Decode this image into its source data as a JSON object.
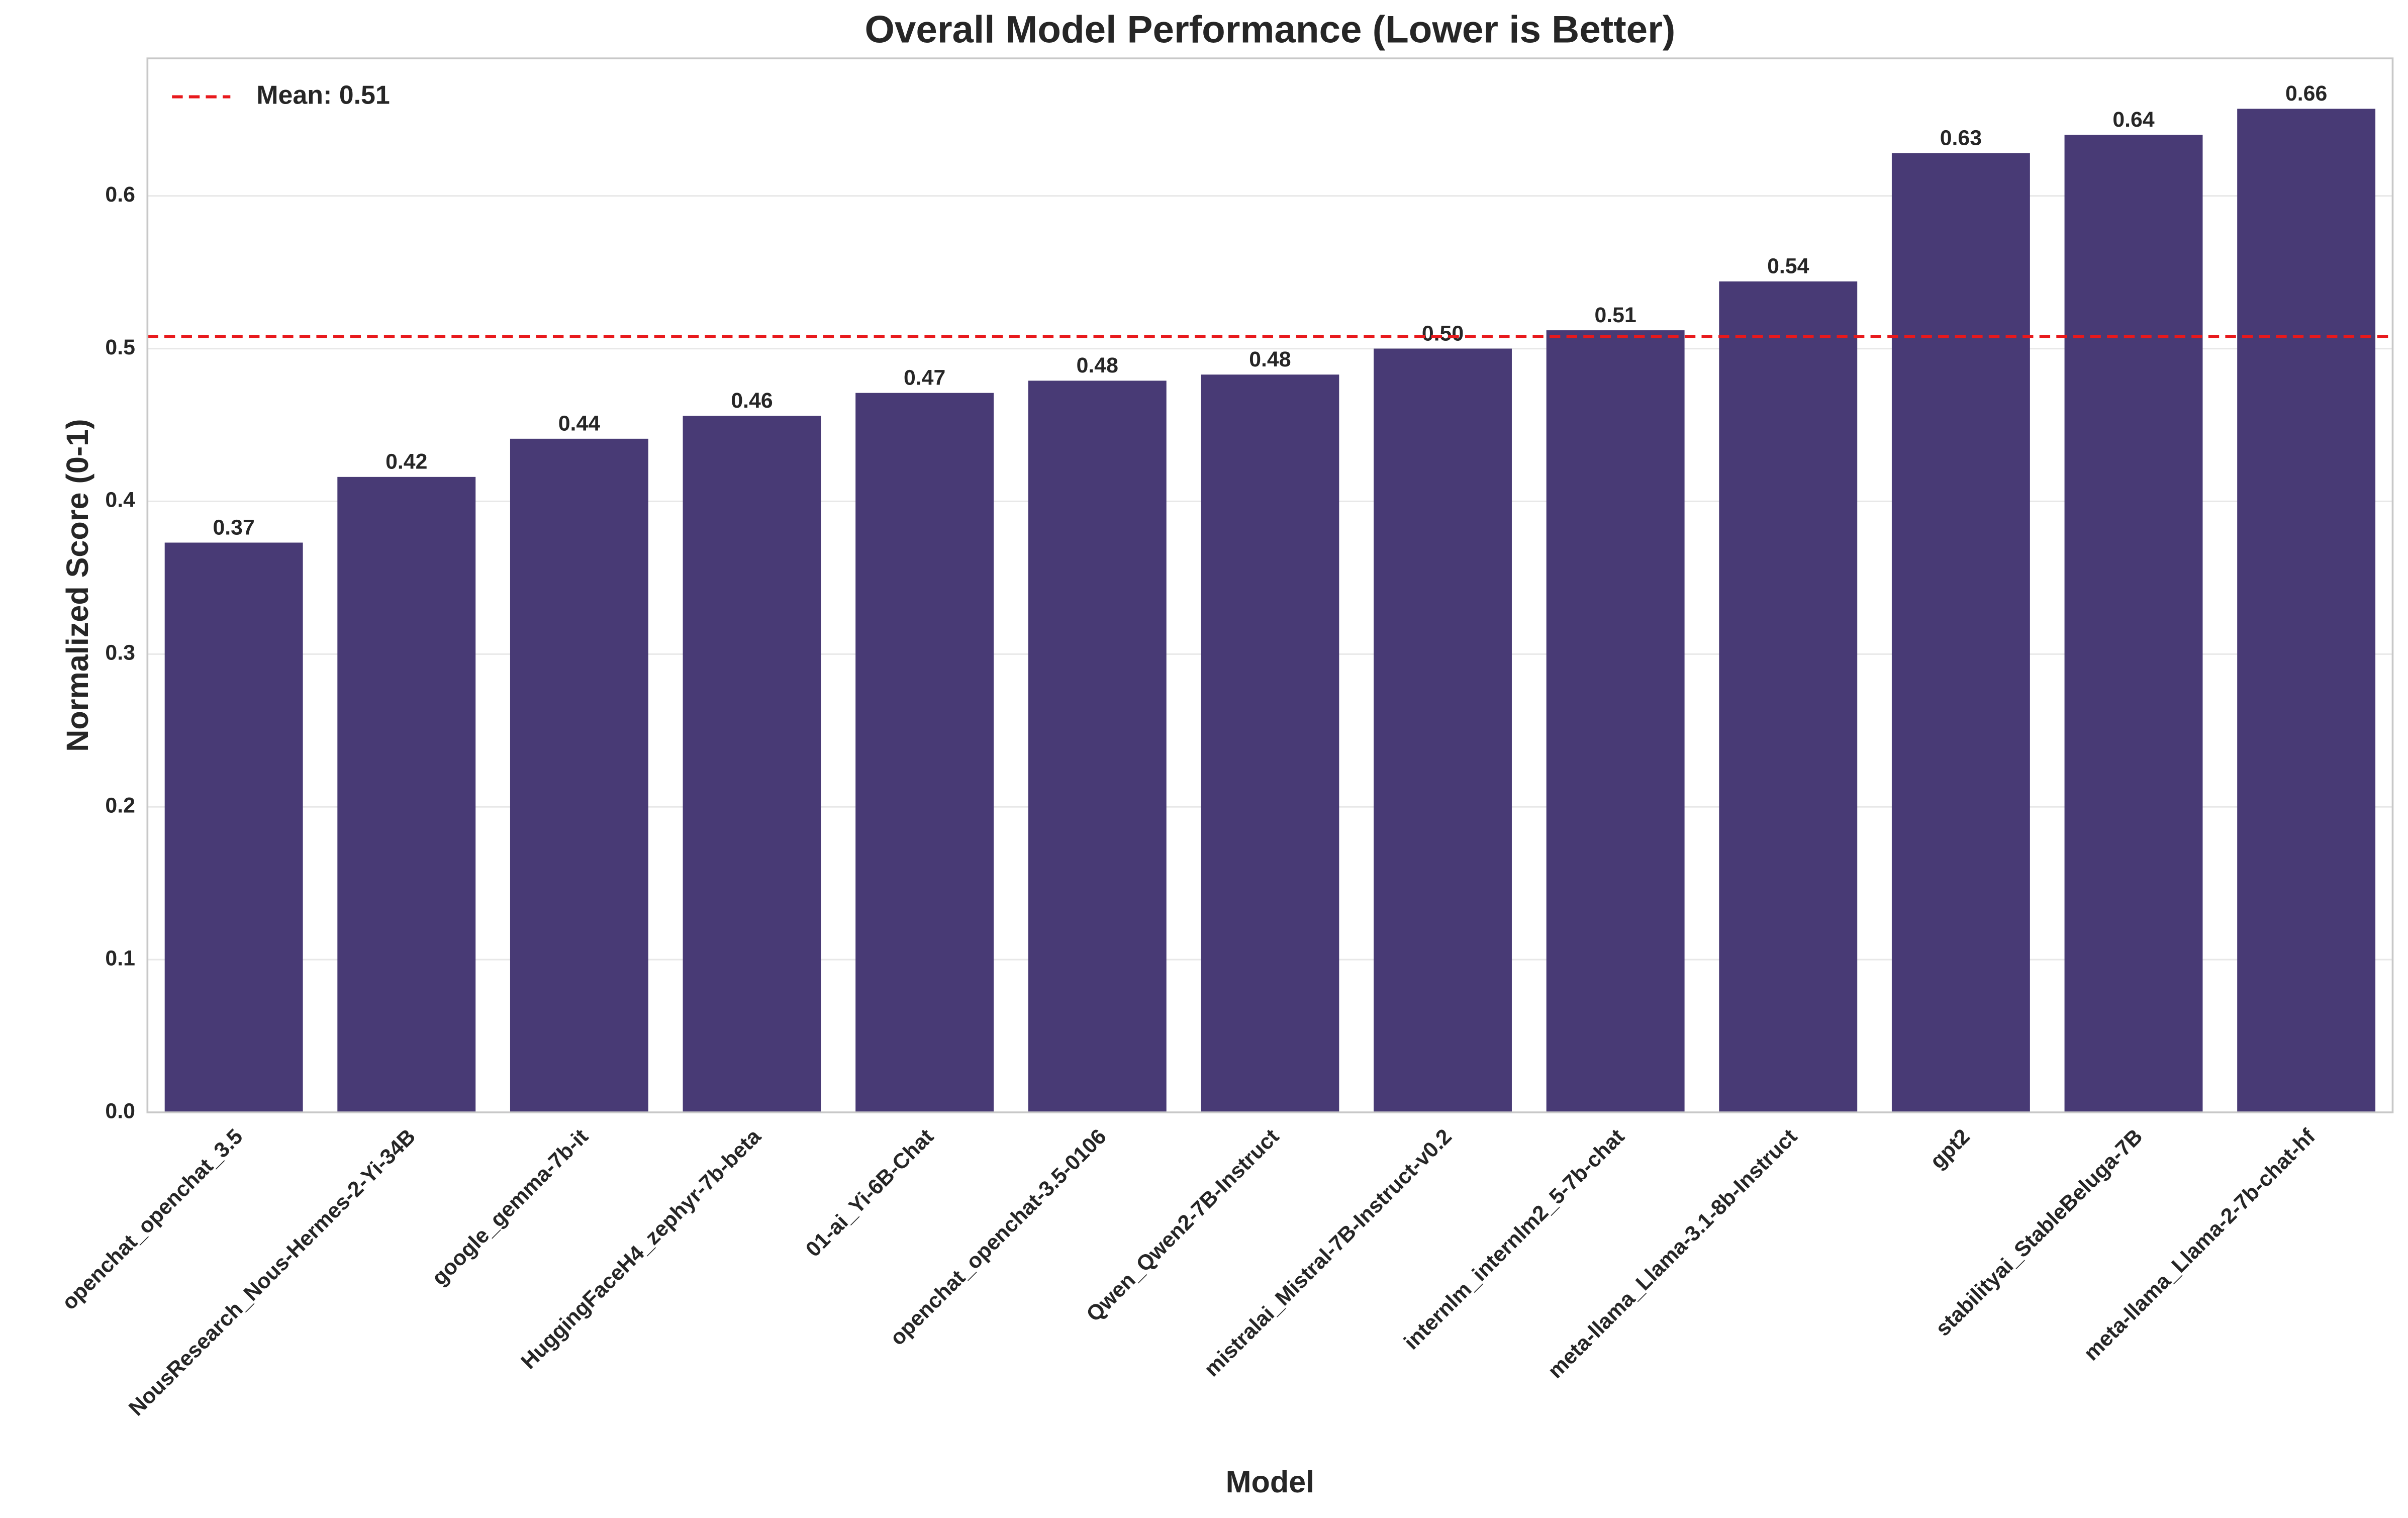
{
  "chart_data": {
    "type": "bar",
    "title": "Overall Model Performance (Lower is Better)",
    "x_label": "Model",
    "y_label": "Normalized Score (0-1)",
    "categories": [
      "openchat_openchat_3.5",
      "NousResearch_Nous-Hermes-2-Yi-34B",
      "google_gemma-7b-it",
      "HuggingFaceH4_zephyr-7b-beta",
      "01-ai_Yi-6B-Chat",
      "openchat_openchat-3.5-0106",
      "Qwen_Qwen2-7B-Instruct",
      "mistralai_Mistral-7B-Instruct-v0.2",
      "internlm_internlm2_5-7b-chat",
      "meta-llama_Llama-3.1-8b-Instruct",
      "gpt2",
      "stabilityai_StableBeluga-7B",
      "meta-llama_Llama-2-7b-chat-hf"
    ],
    "values": [
      0.373,
      0.416,
      0.441,
      0.456,
      0.471,
      0.479,
      0.483,
      0.5,
      0.512,
      0.544,
      0.628,
      0.64,
      0.657
    ],
    "value_labels": [
      "0.37",
      "0.42",
      "0.44",
      "0.46",
      "0.47",
      "0.48",
      "0.48",
      "0.50",
      "0.51",
      "0.54",
      "0.63",
      "0.64",
      "0.66"
    ],
    "color": "#483a75",
    "mean": {
      "value": 0.508,
      "label": "Mean: 0.51",
      "color": "#e8191c"
    },
    "legend": "upper left",
    "ylim": [
      0,
      0.69
    ],
    "yticks": [
      {
        "value": 0,
        "label": "0.0"
      },
      0.1,
      0.2,
      0.3,
      0.4,
      0.5,
      0.6
    ],
    "grid": true
  }
}
